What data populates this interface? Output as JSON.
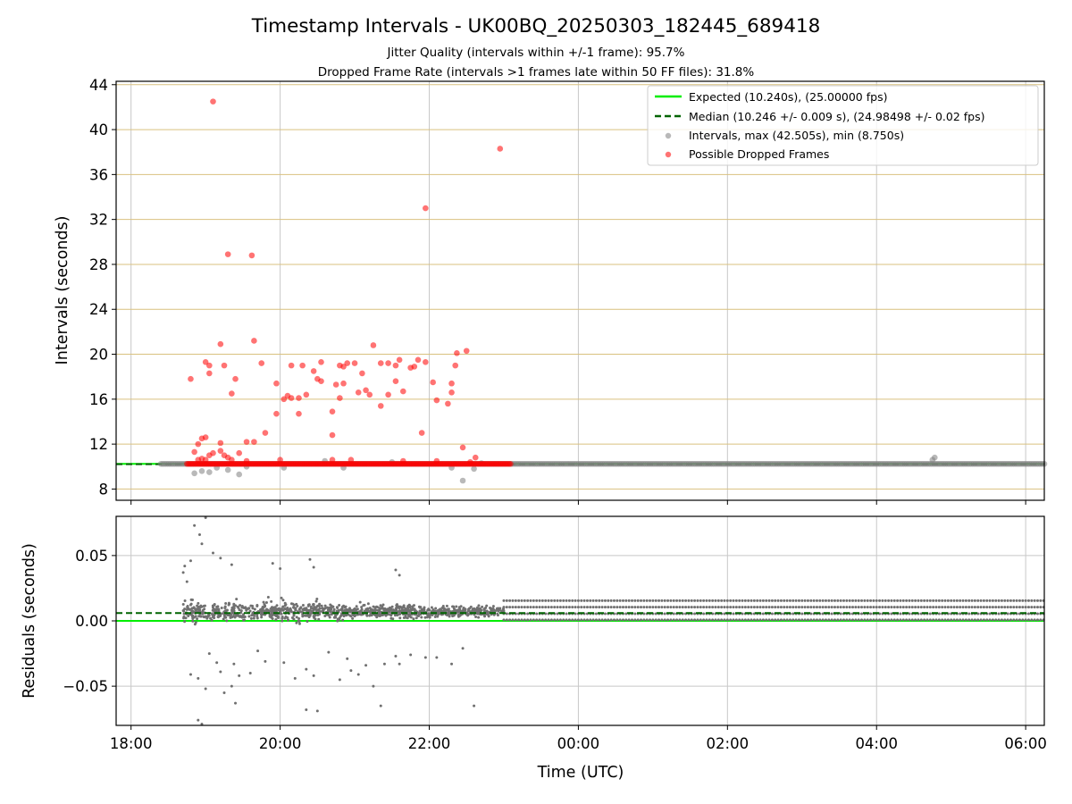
{
  "chart_data": {
    "type": "scatter",
    "title": "Timestamp Intervals - UK00BQ_20250303_182445_689418",
    "subtitle": [
      "Jitter Quality (intervals within +/-1 frame): 95.7%",
      "Dropped Frame Rate (intervals >1 frames late within 50 FF files): 31.8%"
    ],
    "x_axis": {
      "label": "Time (UTC)",
      "range_hours": [
        17.8,
        30.25
      ],
      "ticks": [
        {
          "h": 18,
          "label": "18:00"
        },
        {
          "h": 20,
          "label": "20:00"
        },
        {
          "h": 22,
          "label": "22:00"
        },
        {
          "h": 24,
          "label": "00:00"
        },
        {
          "h": 26,
          "label": "02:00"
        },
        {
          "h": 28,
          "label": "04:00"
        },
        {
          "h": 30,
          "label": "06:00"
        }
      ],
      "grid": true
    },
    "panels": [
      {
        "id": "intervals",
        "ylabel": "Intervals (seconds)",
        "ylim": [
          7.0,
          44.3
        ],
        "yticks": [
          8,
          12,
          16,
          20,
          24,
          28,
          32,
          36,
          40,
          44
        ],
        "ygrid_color": "#d9c17f",
        "expected": 10.24,
        "median": 10.246,
        "gray_band": {
          "start_h": 18.4,
          "end_h": 30.25,
          "value": 10.24
        },
        "red_band": {
          "start_h": 18.75,
          "end_h": 23.1,
          "value": 10.24
        },
        "gray_points": [
          [
            18.85,
            9.4
          ],
          [
            18.95,
            9.6
          ],
          [
            19.05,
            9.5
          ],
          [
            19.15,
            9.9
          ],
          [
            19.3,
            9.7
          ],
          [
            19.45,
            9.3
          ],
          [
            19.55,
            10.0
          ],
          [
            20.05,
            9.9
          ],
          [
            20.6,
            10.5
          ],
          [
            20.85,
            9.9
          ],
          [
            21.5,
            10.4
          ],
          [
            22.3,
            9.9
          ],
          [
            22.45,
            8.75
          ],
          [
            22.6,
            9.8
          ],
          [
            22.7,
            10.3
          ],
          [
            28.75,
            10.6
          ],
          [
            28.78,
            10.8
          ]
        ],
        "red_points": [
          [
            19.1,
            42.5
          ],
          [
            22.95,
            38.3
          ],
          [
            21.95,
            33.0
          ],
          [
            19.3,
            28.9
          ],
          [
            19.62,
            28.8
          ],
          [
            19.65,
            21.2
          ],
          [
            19.2,
            20.9
          ],
          [
            21.25,
            20.8
          ],
          [
            22.5,
            20.3
          ],
          [
            22.37,
            20.1
          ],
          [
            21.85,
            19.5
          ],
          [
            21.6,
            19.5
          ],
          [
            19.0,
            19.3
          ],
          [
            19.05,
            19.0
          ],
          [
            19.25,
            19.0
          ],
          [
            19.75,
            19.2
          ],
          [
            20.15,
            19.0
          ],
          [
            20.3,
            19.0
          ],
          [
            20.55,
            19.3
          ],
          [
            20.8,
            19.0
          ],
          [
            20.85,
            18.9
          ],
          [
            20.9,
            19.2
          ],
          [
            21.0,
            19.2
          ],
          [
            21.35,
            19.2
          ],
          [
            21.45,
            19.2
          ],
          [
            21.55,
            19.0
          ],
          [
            21.75,
            18.8
          ],
          [
            21.8,
            18.9
          ],
          [
            21.95,
            19.3
          ],
          [
            22.35,
            19.0
          ],
          [
            19.05,
            18.3
          ],
          [
            20.45,
            18.5
          ],
          [
            20.5,
            17.8
          ],
          [
            20.55,
            17.6
          ],
          [
            20.75,
            17.3
          ],
          [
            20.85,
            17.4
          ],
          [
            21.1,
            18.3
          ],
          [
            21.55,
            17.6
          ],
          [
            22.05,
            17.5
          ],
          [
            22.3,
            17.4
          ],
          [
            18.8,
            17.8
          ],
          [
            19.4,
            17.8
          ],
          [
            19.35,
            16.5
          ],
          [
            19.95,
            17.4
          ],
          [
            20.05,
            16.0
          ],
          [
            20.1,
            16.3
          ],
          [
            20.15,
            16.1
          ],
          [
            20.25,
            16.1
          ],
          [
            20.35,
            16.4
          ],
          [
            20.8,
            16.1
          ],
          [
            21.05,
            16.6
          ],
          [
            21.15,
            16.8
          ],
          [
            21.2,
            16.4
          ],
          [
            21.45,
            16.4
          ],
          [
            21.65,
            16.7
          ],
          [
            22.1,
            15.9
          ],
          [
            22.3,
            16.6
          ],
          [
            21.35,
            15.4
          ],
          [
            22.25,
            15.6
          ],
          [
            19.95,
            14.7
          ],
          [
            20.25,
            14.7
          ],
          [
            20.7,
            14.9
          ],
          [
            21.9,
            13.0
          ],
          [
            20.7,
            12.8
          ],
          [
            19.8,
            13.0
          ],
          [
            19.65,
            12.2
          ],
          [
            19.55,
            12.2
          ],
          [
            18.9,
            12.0
          ],
          [
            18.95,
            12.5
          ],
          [
            19.0,
            12.6
          ],
          [
            19.2,
            12.1
          ],
          [
            18.85,
            11.3
          ],
          [
            19.05,
            11.0
          ],
          [
            19.1,
            11.2
          ],
          [
            19.2,
            11.4
          ],
          [
            19.45,
            11.2
          ],
          [
            19.25,
            11.0
          ],
          [
            19.3,
            10.8
          ],
          [
            22.45,
            11.7
          ],
          [
            22.62,
            10.8
          ],
          [
            18.9,
            10.6
          ],
          [
            18.95,
            10.7
          ],
          [
            19.0,
            10.6
          ],
          [
            19.35,
            10.6
          ],
          [
            19.55,
            10.5
          ],
          [
            20.0,
            10.6
          ],
          [
            20.7,
            10.6
          ],
          [
            20.95,
            10.6
          ],
          [
            21.65,
            10.5
          ],
          [
            22.1,
            10.5
          ],
          [
            22.55,
            10.4
          ]
        ]
      },
      {
        "id": "residuals",
        "ylabel": "Residuals (seconds)",
        "ylim": [
          -0.08,
          0.08
        ],
        "yticks": [
          {
            "v": -0.05,
            "label": "−0.05"
          },
          {
            "v": 0.0,
            "label": "0.00"
          },
          {
            "v": 0.05,
            "label": "0.05"
          }
        ],
        "expected": 0.0,
        "median": 0.006,
        "median_span_h": [
          18.4,
          30.25
        ],
        "scatter_span_h": [
          18.4,
          23.0
        ],
        "regular_span_h": [
          23.0,
          30.25
        ],
        "regular_levels": [
          0.0008,
          0.0055,
          0.0105,
          0.0155
        ],
        "outliers": [
          [
            19.0,
            0.079
          ],
          [
            18.85,
            0.073
          ],
          [
            18.92,
            0.066
          ],
          [
            18.95,
            0.059
          ],
          [
            19.1,
            0.052
          ],
          [
            18.8,
            0.046
          ],
          [
            19.2,
            0.048
          ],
          [
            18.7,
            0.037
          ],
          [
            18.75,
            0.03
          ],
          [
            18.72,
            0.042
          ],
          [
            19.35,
            0.043
          ],
          [
            20.0,
            0.04
          ],
          [
            20.45,
            0.041
          ],
          [
            21.55,
            0.039
          ],
          [
            21.6,
            0.035
          ],
          [
            20.4,
            0.047
          ],
          [
            19.9,
            0.044
          ],
          [
            18.8,
            -0.041
          ],
          [
            18.9,
            -0.044
          ],
          [
            19.0,
            -0.052
          ],
          [
            19.15,
            -0.032
          ],
          [
            19.2,
            -0.039
          ],
          [
            19.38,
            -0.033
          ],
          [
            19.45,
            -0.042
          ],
          [
            19.25,
            -0.055
          ],
          [
            19.35,
            -0.05
          ],
          [
            19.4,
            -0.063
          ],
          [
            19.6,
            -0.04
          ],
          [
            19.8,
            -0.031
          ],
          [
            20.05,
            -0.032
          ],
          [
            20.2,
            -0.044
          ],
          [
            20.35,
            -0.037
          ],
          [
            20.45,
            -0.042
          ],
          [
            20.35,
            -0.068
          ],
          [
            20.5,
            -0.069
          ],
          [
            20.8,
            -0.045
          ],
          [
            20.9,
            -0.029
          ],
          [
            20.95,
            -0.038
          ],
          [
            21.05,
            -0.041
          ],
          [
            21.15,
            -0.034
          ],
          [
            21.25,
            -0.05
          ],
          [
            21.4,
            -0.033
          ],
          [
            21.55,
            -0.027
          ],
          [
            21.6,
            -0.033
          ],
          [
            21.35,
            -0.065
          ],
          [
            21.95,
            -0.028
          ],
          [
            22.1,
            -0.028
          ],
          [
            22.3,
            -0.033
          ],
          [
            22.6,
            -0.065
          ],
          [
            18.9,
            -0.076
          ],
          [
            18.95,
            -0.079
          ],
          [
            19.05,
            -0.025
          ],
          [
            19.7,
            -0.023
          ],
          [
            20.65,
            -0.024
          ],
          [
            21.75,
            -0.026
          ],
          [
            22.45,
            -0.021
          ]
        ]
      }
    ],
    "legend": {
      "placement": "upper right",
      "entries": [
        {
          "label": "Expected (10.240s), (25.00000 fps)",
          "style": "line",
          "color": "#00ee00"
        },
        {
          "label": "Median (10.246 +/- 0.009 s), (24.98498 +/- 0.02 fps)",
          "style": "dashed",
          "color": "#006400"
        },
        {
          "label": "Intervals, max (42.505s), min (8.750s)",
          "style": "marker",
          "color": "#808080"
        },
        {
          "label": "Possible Dropped Frames",
          "style": "marker",
          "color": "#ff0000"
        }
      ]
    },
    "colors": {
      "expected": "#00ee00",
      "median": "#006400",
      "intervals": "#808080",
      "dropped": "#ff0000",
      "grid": "#c8c8c8"
    }
  }
}
